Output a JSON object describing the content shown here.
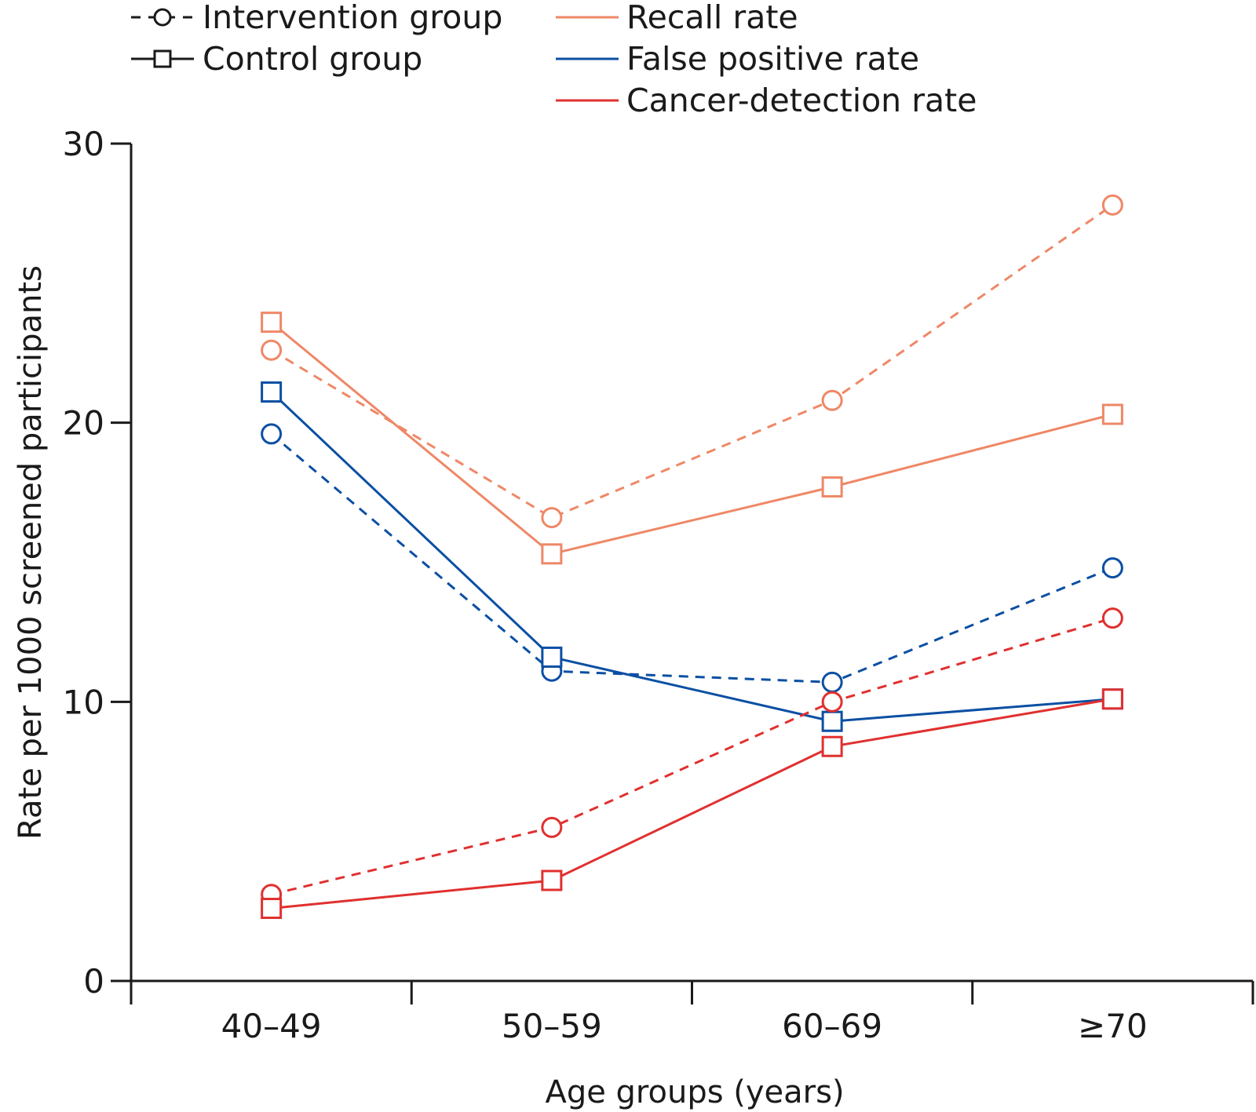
{
  "legend": {
    "group_items": [
      {
        "label": "Intervention group",
        "style": "dashed",
        "marker": "circle"
      },
      {
        "label": "Control group",
        "style": "solid",
        "marker": "square"
      }
    ],
    "metric_items": [
      {
        "label": "Recall rate",
        "color": "#EE8867"
      },
      {
        "label": "False positive rate",
        "color": "#0B4FA3"
      },
      {
        "label": "Cancer-detection rate",
        "color": "#E0302F"
      }
    ]
  },
  "chart_data": {
    "type": "line",
    "xlabel": "Age groups (years)",
    "ylabel": "Rate per 1000 screened participants",
    "categories": [
      "40–49",
      "50–59",
      "60–69",
      "≥70"
    ],
    "ylim": [
      0,
      30
    ],
    "yticks": [
      0,
      10,
      20,
      30
    ],
    "grid": false,
    "legend_position": "top",
    "series": [
      {
        "metric": "Recall rate",
        "group": "Intervention group",
        "color": "#EE8867",
        "style": "dashed",
        "marker": "circle",
        "values": [
          22.6,
          16.6,
          20.8,
          27.8
        ]
      },
      {
        "metric": "Recall rate",
        "group": "Control group",
        "color": "#EE8867",
        "style": "solid",
        "marker": "square",
        "values": [
          23.6,
          15.3,
          17.7,
          20.3
        ]
      },
      {
        "metric": "False positive rate",
        "group": "Intervention group",
        "color": "#0B4FA3",
        "style": "dashed",
        "marker": "circle",
        "values": [
          19.6,
          11.1,
          10.7,
          14.8
        ]
      },
      {
        "metric": "False positive rate",
        "group": "Control group",
        "color": "#0B4FA3",
        "style": "solid",
        "marker": "square",
        "values": [
          21.1,
          11.6,
          9.3,
          10.1
        ]
      },
      {
        "metric": "Cancer-detection rate",
        "group": "Intervention group",
        "color": "#E0302F",
        "style": "dashed",
        "marker": "circle",
        "values": [
          3.1,
          5.5,
          10.0,
          13.0
        ]
      },
      {
        "metric": "Cancer-detection rate",
        "group": "Control group",
        "color": "#E0302F",
        "style": "solid",
        "marker": "square",
        "values": [
          2.6,
          3.6,
          8.4,
          10.1
        ]
      }
    ]
  }
}
